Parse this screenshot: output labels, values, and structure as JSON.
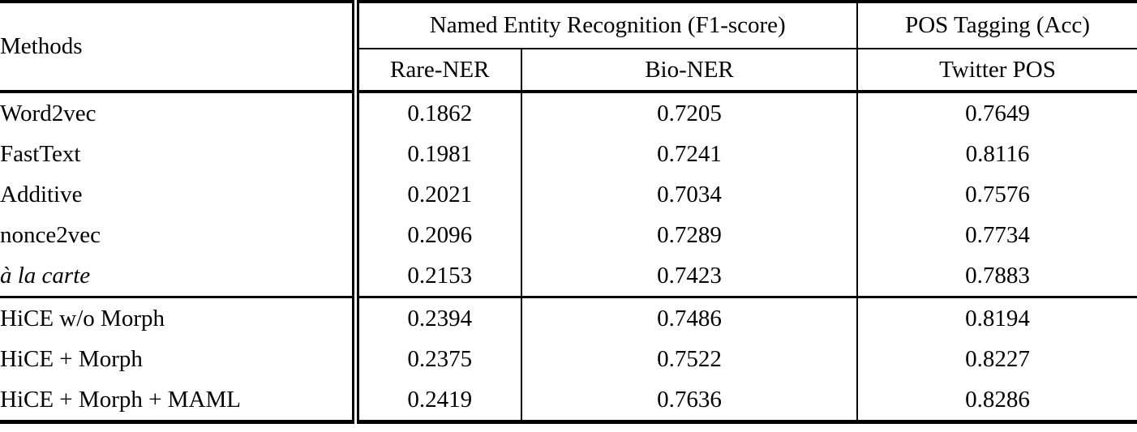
{
  "table": {
    "header": {
      "methods_label": "Methods",
      "group1_label": "Named Entity Recognition (F1-score)",
      "group2_label": "POS Tagging (Acc)",
      "subcolumns": [
        "Rare-NER",
        "Bio-NER",
        "Twitter POS"
      ]
    },
    "groups": [
      {
        "rows": [
          {
            "method": "Word2vec",
            "italic": false,
            "bold": false,
            "values": [
              "0.1862",
              "0.7205",
              "0.7649"
            ]
          },
          {
            "method": "FastText",
            "italic": false,
            "bold": false,
            "values": [
              "0.1981",
              "0.7241",
              "0.8116"
            ]
          },
          {
            "method": "Additive",
            "italic": false,
            "bold": false,
            "values": [
              "0.2021",
              "0.7034",
              "0.7576"
            ]
          },
          {
            "method": "nonce2vec",
            "italic": false,
            "bold": false,
            "values": [
              "0.2096",
              "0.7289",
              "0.7734"
            ]
          },
          {
            "method": "à la carte",
            "italic": true,
            "bold": false,
            "values": [
              "0.2153",
              "0.7423",
              "0.7883"
            ]
          }
        ]
      },
      {
        "rows": [
          {
            "method": "HiCE w/o Morph",
            "italic": false,
            "bold": false,
            "values": [
              "0.2394",
              "0.7486",
              "0.8194"
            ]
          },
          {
            "method": "HiCE + Morph",
            "italic": false,
            "bold": false,
            "values": [
              "0.2375",
              "0.7522",
              "0.8227"
            ]
          },
          {
            "method": "HiCE + Morph + MAML",
            "italic": false,
            "bold": true,
            "values": [
              "0.2419",
              "0.7636",
              "0.8286"
            ]
          }
        ]
      }
    ]
  }
}
